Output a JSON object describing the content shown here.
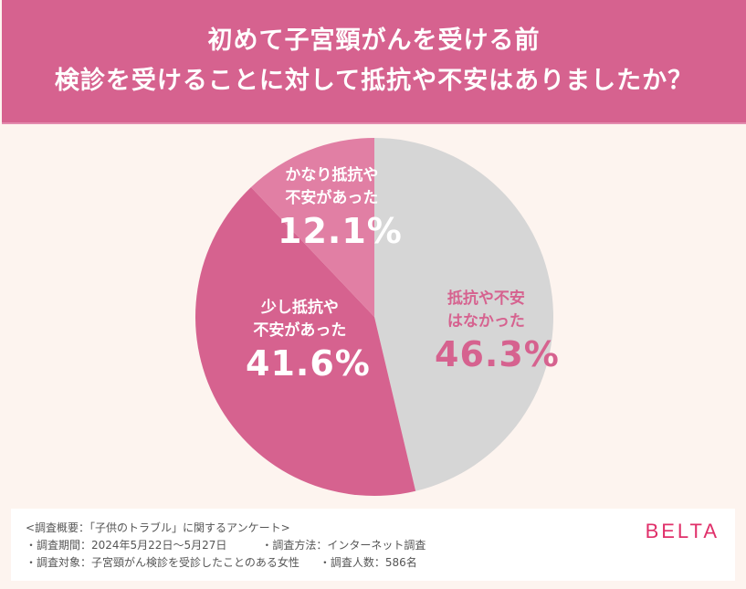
{
  "header": {
    "title_line1": "初めて子宮頸がんを受ける前",
    "title_line2": "検診を受けることに対して抵抗や不安はありましたか？",
    "background_color": "#D6628F"
  },
  "chart_data": {
    "type": "pie",
    "title": "初めて子宮頸がんを受ける前 検診を受けることに対して抵抗や不安はありましたか？",
    "categories": [
      "抵抗や不安はなかった",
      "少し抵抗や不安があった",
      "かなり抵抗や不安があった"
    ],
    "values": [
      46.3,
      41.6,
      12.1
    ],
    "unit": "%",
    "start_angle": "12 o'clock, clockwise",
    "colors": [
      "#D6D6D6",
      "#D6628F",
      "#E17FA4"
    ],
    "labels": [
      {
        "category_line1": "抵抗や不安",
        "category_line2": "はなかった",
        "value_label": "46.3%"
      },
      {
        "category_line1": "少し抵抗や",
        "category_line2": "不安があった",
        "value_label": "41.6%"
      },
      {
        "category_line1": "かなり抵抗や",
        "category_line2": "不安があった",
        "value_label": "12.1%"
      }
    ],
    "legend": "none (labels inside slices)"
  },
  "footer": {
    "summary": "<調査概要：「子供のトラブル」に関するアンケート>",
    "period": "・調査期間：2024年5月22日〜5月27日",
    "method": "・調査方法：インターネット調査",
    "target": "・調査対象：子宮頸がん検診を受診したことのある女性",
    "respondents": "・調査人数：586名",
    "brand": "BELTA",
    "brand_color": "#E0306A"
  }
}
